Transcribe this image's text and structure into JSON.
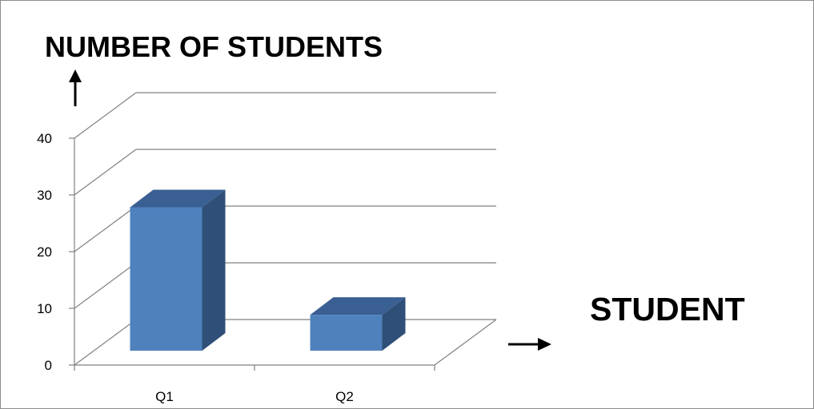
{
  "chart_data": {
    "type": "bar",
    "title": "NUMBER OF STUDENTS",
    "xlabel": "STUDENT",
    "ylabel": "NUMBER OF STUDENTS",
    "categories": [
      "Q1",
      "Q2"
    ],
    "values": [
      32,
      8
    ],
    "ylim": [
      0,
      40
    ],
    "yticks": [
      "0",
      "10",
      "20",
      "30",
      "40"
    ],
    "grid": true,
    "legend": "none",
    "style": "3d-column",
    "colors": {
      "bar_front": "#4F81BD",
      "bar_side": "#2F4F78",
      "bar_top": "#3A5F93",
      "gridline": "#808080"
    },
    "arrows": {
      "y_arrow_icon": "up-arrow-icon",
      "x_arrow_icon": "right-arrow-icon"
    }
  }
}
